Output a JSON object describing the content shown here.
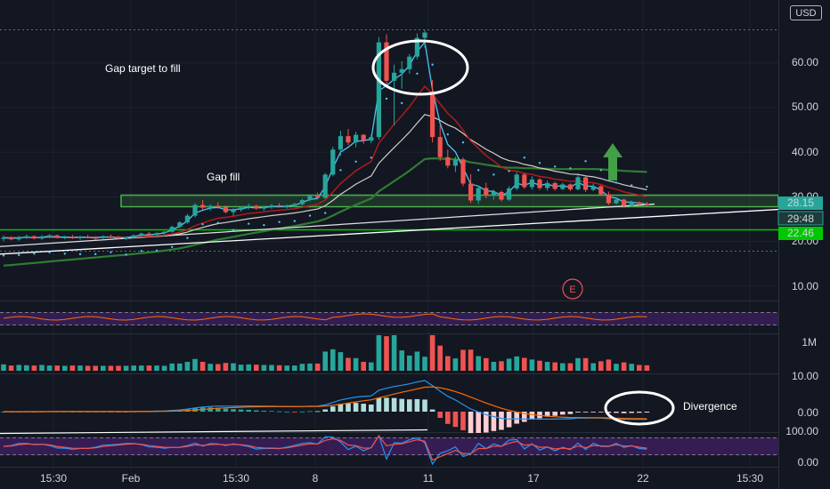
{
  "currency_button": "USD",
  "price_axis": [
    "60.00",
    "50.00",
    "40.00",
    "30.00",
    "20.00",
    "10.00"
  ],
  "price_tags": {
    "last": "28.15",
    "countdown": "29:48",
    "support": "22.46"
  },
  "time_axis": [
    "15:30",
    "Feb",
    "15:30",
    "8",
    "11",
    "17",
    "22",
    "15:30"
  ],
  "earnings_marker": "E",
  "volume_axis": [
    "1M"
  ],
  "macd_axis": [
    "10.00",
    "0.00"
  ],
  "rsi_axis": [
    "100.00",
    "0.00"
  ],
  "annotations": {
    "gap_target": "Gap target to fill",
    "gap_fill": "Gap fill",
    "divergence": "Divergence"
  },
  "colors": {
    "up": "#26a69a",
    "down": "#ef5350",
    "ema_fast": "#4fc3f7",
    "ma_slow": "#b71c1c",
    "long_ma": "#2e7d32",
    "zone": "#4caf50",
    "tag_teal": "#26a69a",
    "tag_green": "#00c800",
    "rsi_band": "#3c1f5c"
  },
  "chart_data": {
    "type": "candlestick",
    "y_range": [
      0,
      75
    ],
    "resistance_zone": [
      28.5,
      31.5
    ],
    "support_level": 22.46,
    "last_price": 28.15,
    "ohlc": [
      [
        20.6,
        21.4,
        20.1,
        20.9
      ],
      [
        20.9,
        21.2,
        20.3,
        20.5
      ],
      [
        20.5,
        21.3,
        20.2,
        21.0
      ],
      [
        21.0,
        21.6,
        20.6,
        21.2
      ],
      [
        21.2,
        21.4,
        20.5,
        20.7
      ],
      [
        20.7,
        21.5,
        20.4,
        21.1
      ],
      [
        21.1,
        21.7,
        20.8,
        21.4
      ],
      [
        21.4,
        21.6,
        20.7,
        20.9
      ],
      [
        20.9,
        21.3,
        20.5,
        21.0
      ],
      [
        21.0,
        21.5,
        20.6,
        20.8
      ],
      [
        20.8,
        21.3,
        20.4,
        21.1
      ],
      [
        21.1,
        21.5,
        20.7,
        20.9
      ],
      [
        20.9,
        21.2,
        20.4,
        20.8
      ],
      [
        20.8,
        21.4,
        20.6,
        21.2
      ],
      [
        21.2,
        21.6,
        20.8,
        21.0
      ],
      [
        21.0,
        21.3,
        20.5,
        20.7
      ],
      [
        20.7,
        21.1,
        20.3,
        20.9
      ],
      [
        20.9,
        21.6,
        20.7,
        21.4
      ],
      [
        21.4,
        22.0,
        21.1,
        21.8
      ],
      [
        21.8,
        22.2,
        21.3,
        21.5
      ],
      [
        21.5,
        22.1,
        21.2,
        21.9
      ],
      [
        21.9,
        22.4,
        21.6,
        22.2
      ],
      [
        22.2,
        23.6,
        22.0,
        23.3
      ],
      [
        23.3,
        24.6,
        23.0,
        24.3
      ],
      [
        24.3,
        26.2,
        24.0,
        25.8
      ],
      [
        25.8,
        28.6,
        25.4,
        28.2
      ],
      [
        28.2,
        29.3,
        27.1,
        27.6
      ],
      [
        27.6,
        28.4,
        26.9,
        28.0
      ],
      [
        28.0,
        28.8,
        27.4,
        27.8
      ],
      [
        27.8,
        28.1,
        26.3,
        26.6
      ],
      [
        26.6,
        27.5,
        25.8,
        27.1
      ],
      [
        27.1,
        27.9,
        26.7,
        27.6
      ],
      [
        27.6,
        28.5,
        27.2,
        28.0
      ],
      [
        28.0,
        28.3,
        27.1,
        27.4
      ],
      [
        27.4,
        28.0,
        26.9,
        27.7
      ],
      [
        27.7,
        28.4,
        27.3,
        28.1
      ],
      [
        28.1,
        28.6,
        27.6,
        27.9
      ],
      [
        27.9,
        28.3,
        27.4,
        28.0
      ],
      [
        28.0,
        28.7,
        27.8,
        28.4
      ],
      [
        28.4,
        29.6,
        28.1,
        29.3
      ],
      [
        29.3,
        30.6,
        29.0,
        30.2
      ],
      [
        30.2,
        31.0,
        29.4,
        29.8
      ],
      [
        29.8,
        35.4,
        29.6,
        35.0
      ],
      [
        35.0,
        41.2,
        34.6,
        40.6
      ],
      [
        40.6,
        44.8,
        39.2,
        43.6
      ],
      [
        43.6,
        45.2,
        41.6,
        42.2
      ],
      [
        42.2,
        44.6,
        41.1,
        43.9
      ],
      [
        43.9,
        44.1,
        41.9,
        42.6
      ],
      [
        42.6,
        44.0,
        42.0,
        43.4
      ],
      [
        43.4,
        65.8,
        42.8,
        64.6
      ],
      [
        64.6,
        66.4,
        55.2,
        56.0
      ],
      [
        56.0,
        59.6,
        46.0,
        57.8
      ],
      [
        57.8,
        60.4,
        54.2,
        58.6
      ],
      [
        58.6,
        62.0,
        57.6,
        61.4
      ],
      [
        61.4,
        66.6,
        60.8,
        65.6
      ],
      [
        65.6,
        67.4,
        63.4,
        66.8
      ],
      [
        53.6,
        56.2,
        42.2,
        43.4
      ],
      [
        43.4,
        46.0,
        38.1,
        38.9
      ],
      [
        38.9,
        40.6,
        36.4,
        37.0
      ],
      [
        37.0,
        39.0,
        35.6,
        38.4
      ],
      [
        38.4,
        38.8,
        32.4,
        33.0
      ],
      [
        33.0,
        35.1,
        28.6,
        29.2
      ],
      [
        29.2,
        32.6,
        28.4,
        32.0
      ],
      [
        32.0,
        33.2,
        29.7,
        30.3
      ],
      [
        30.3,
        31.6,
        29.4,
        31.1
      ],
      [
        31.1,
        31.4,
        29.0,
        29.4
      ],
      [
        29.4,
        32.4,
        29.1,
        31.9
      ],
      [
        31.9,
        35.6,
        31.5,
        35.0
      ],
      [
        35.0,
        35.4,
        31.8,
        32.2
      ],
      [
        32.2,
        34.6,
        31.6,
        33.9
      ],
      [
        33.9,
        34.2,
        31.6,
        32.0
      ],
      [
        32.0,
        33.6,
        31.4,
        33.1
      ],
      [
        33.1,
        33.4,
        31.4,
        31.8
      ],
      [
        31.8,
        33.2,
        31.5,
        32.8
      ],
      [
        32.8,
        33.0,
        31.3,
        31.7
      ],
      [
        31.7,
        35.0,
        31.5,
        34.4
      ],
      [
        34.4,
        34.6,
        31.1,
        31.6
      ],
      [
        31.6,
        33.0,
        31.3,
        32.4
      ],
      [
        32.4,
        32.6,
        30.2,
        30.6
      ],
      [
        30.6,
        31.2,
        28.2,
        28.6
      ],
      [
        28.6,
        29.8,
        28.3,
        29.4
      ],
      [
        29.4,
        29.6,
        27.6,
        28.0
      ],
      [
        28.0,
        29.2,
        27.7,
        28.8
      ],
      [
        28.8,
        29.0,
        27.9,
        28.4
      ],
      [
        28.4,
        28.9,
        27.9,
        28.15
      ]
    ]
  }
}
